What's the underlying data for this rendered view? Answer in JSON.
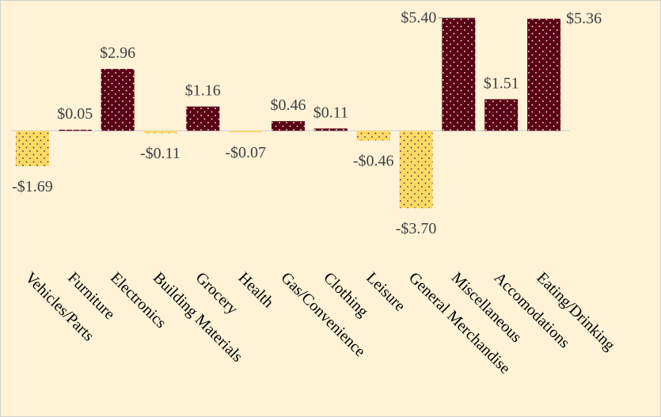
{
  "chart_data": {
    "type": "bar",
    "categories": [
      "Vehicles/Parts",
      "Furniture",
      "Electronics",
      "Building Materials",
      "Grocery",
      "Health",
      "Gas/Convenience",
      "Clothing",
      "Leisure",
      "General Merchandise",
      "Miscellaneous",
      "Accomodations",
      "Eating/Drinking"
    ],
    "values": [
      -1.69,
      0.05,
      2.96,
      -0.11,
      1.16,
      -0.07,
      0.46,
      0.11,
      -0.46,
      -3.7,
      5.4,
      1.51,
      5.36
    ],
    "value_labels": [
      "-$1.69",
      "$0.05",
      "$2.96",
      "-$0.11",
      "$1.16",
      "-$0.07",
      "$0.46",
      "$0.11",
      "-$0.46",
      "-$3.70",
      "$5.40",
      "$1.51",
      "$5.36"
    ],
    "color": "#5a0014",
    "negative_color": "#ffd966",
    "ylim": [
      -6.5,
      5.5
    ]
  }
}
